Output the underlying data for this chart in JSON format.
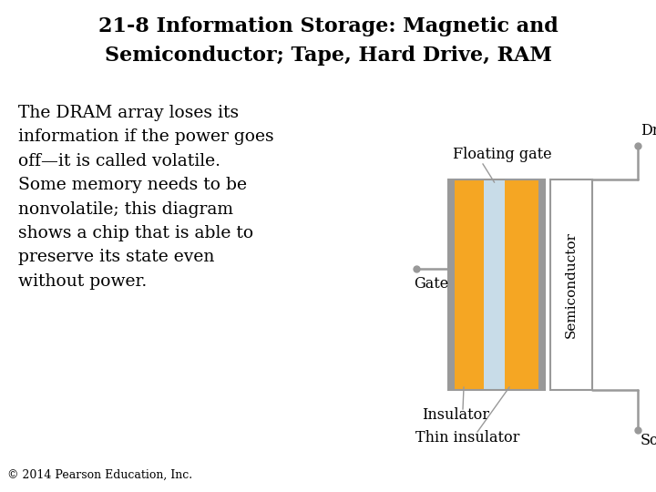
{
  "title_line1": "21-8 Information Storage: Magnetic and",
  "title_line2": "Semiconductor; Tape, Hard Drive, RAM",
  "body_text": "The DRAM array loses its\ninformation if the power goes\noff—it is called volatile.\nSome memory needs to be\nnonvolatile; this diagram\nshows a chip that is able to\npreserve its state even\nwithout power.",
  "copyright_text": "© 2014 Pearson Education, Inc.",
  "bg_color": "#ffffff",
  "title_fontsize": 16,
  "body_fontsize": 13.5,
  "copyright_fontsize": 9,
  "label_fontsize": 11.5,
  "orange_color": "#f5a623",
  "light_blue_color": "#c8dce8",
  "gray_color": "#999999",
  "line_color": "#999999",
  "dot_size": 5,
  "line_width": 1.8,
  "struct_lw": 1.5,
  "sem_lw": 1.5
}
